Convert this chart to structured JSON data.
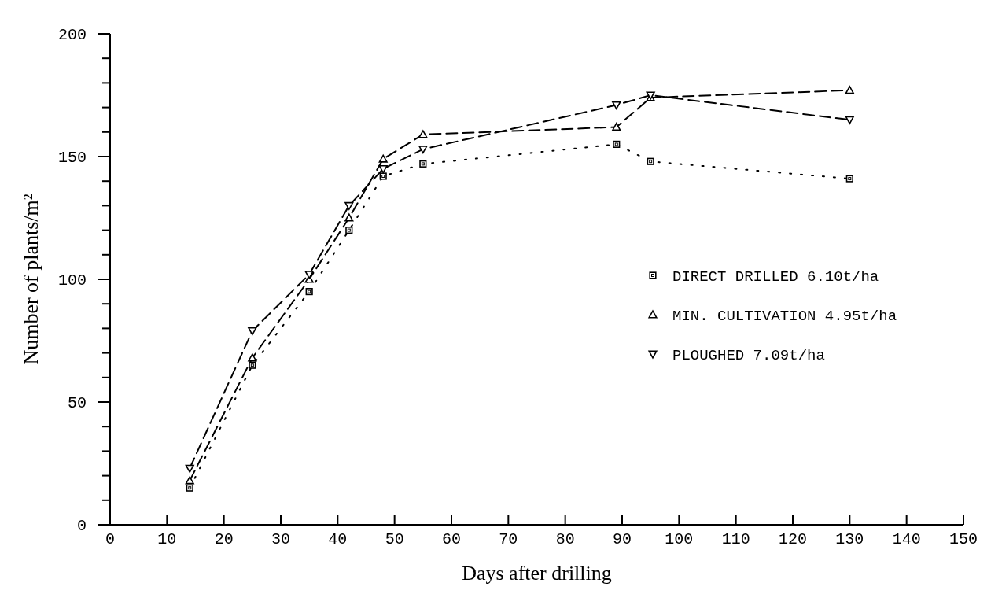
{
  "chart_data": {
    "type": "line",
    "xlabel": "Days after drilling",
    "ylabel": "Number of plants/m²",
    "x": [
      14,
      25,
      35,
      42,
      48,
      55,
      89,
      95,
      130
    ],
    "series": [
      {
        "name": "DIRECT DRILLED 6.10t/ha",
        "color": "#000000",
        "values": [
          15,
          65,
          95,
          120,
          142,
          147,
          155,
          148,
          141
        ],
        "marker": "square",
        "line_style": "dotted"
      },
      {
        "name": "MIN. CULTIVATION 4.95t/ha",
        "color": "#000000",
        "values": [
          18,
          68,
          100,
          125,
          149,
          159,
          162,
          174,
          177
        ],
        "marker": "triangle",
        "line_style": "dashed"
      },
      {
        "name": "PLOUGHED 7.09t/ha",
        "color": "#000000",
        "values": [
          23,
          79,
          102,
          130,
          145,
          153,
          171,
          175,
          165
        ],
        "marker": "triangle-down",
        "line_style": "dashed"
      }
    ],
    "xlim": [
      0,
      150
    ],
    "xticks": [
      0,
      10,
      20,
      30,
      40,
      50,
      60,
      70,
      80,
      90,
      100,
      110,
      120,
      130,
      140,
      150
    ],
    "ylim": [
      0,
      200
    ],
    "yticks": [
      0,
      {
        "value": 10,
        "label": null
      },
      {
        "value": 20,
        "label": null
      },
      {
        "value": 30,
        "label": null
      },
      {
        "value": 40,
        "label": null
      },
      50,
      {
        "value": 60,
        "label": null
      },
      {
        "value": 70,
        "label": null
      },
      {
        "value": 80,
        "label": null
      },
      {
        "value": 90,
        "label": null
      },
      100,
      {
        "value": 110,
        "label": null
      },
      {
        "value": 120,
        "label": null
      },
      {
        "value": 130,
        "label": null
      },
      {
        "value": 140,
        "label": null
      },
      150,
      {
        "value": 160,
        "label": null
      },
      {
        "value": 170,
        "label": null
      },
      {
        "value": 180,
        "label": null
      },
      {
        "value": 190,
        "label": null
      },
      200
    ],
    "grid": false,
    "legend": "right"
  }
}
